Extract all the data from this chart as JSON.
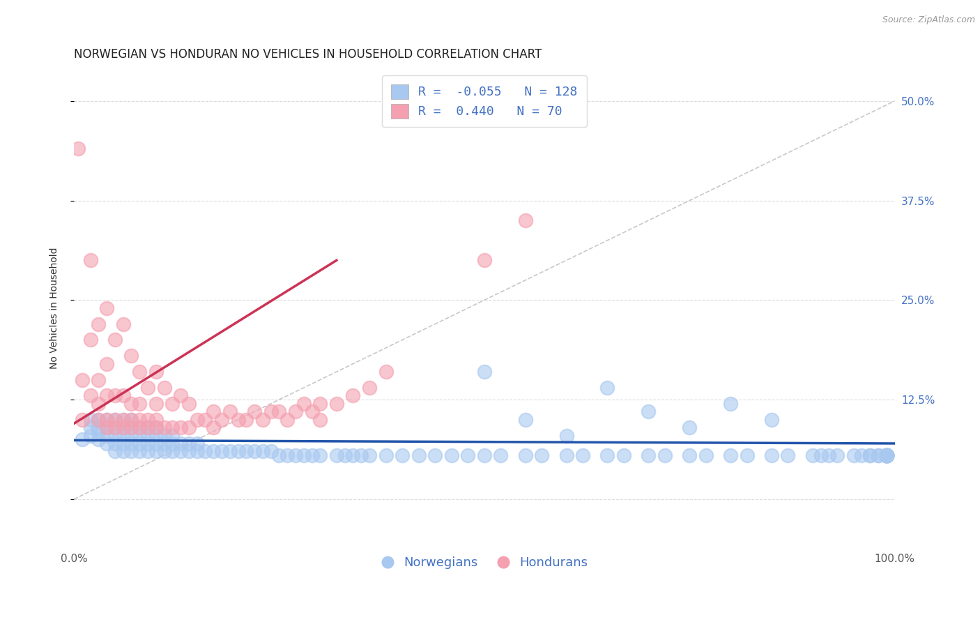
{
  "title": "NORWEGIAN VS HONDURAN NO VEHICLES IN HOUSEHOLD CORRELATION CHART",
  "source": "Source: ZipAtlas.com",
  "xlim": [
    0.0,
    1.0
  ],
  "ylim": [
    -0.06,
    0.54
  ],
  "ylabel_ticks_pct": [
    0.0,
    0.125,
    0.25,
    0.375,
    0.5
  ],
  "ylabel_labels": [
    "",
    "12.5%",
    "25.0%",
    "37.5%",
    "50.0%"
  ],
  "norwegian_R": -0.055,
  "norwegian_N": 128,
  "honduran_R": 0.44,
  "honduran_N": 70,
  "norwegian_color": "#A8C8F0",
  "honduran_color": "#F4A0B0",
  "norwegian_line_color": "#2255AA",
  "honduran_line_color": "#CC3355",
  "diag_line_color": "#BBBBBB",
  "background_color": "#FFFFFF",
  "grid_color": "#CCCCCC",
  "title_color": "#222222",
  "axis_label_color": "#333333",
  "tick_color": "#555555",
  "right_tick_color": "#4472C4",
  "legend_text_color": "#4472C4",
  "source_color": "#999999",
  "title_fontsize": 12,
  "axis_label_fontsize": 10,
  "tick_fontsize": 11,
  "legend_fontsize": 13,
  "source_fontsize": 9,
  "norwegian_x": [
    0.01,
    0.02,
    0.02,
    0.02,
    0.03,
    0.03,
    0.03,
    0.03,
    0.04,
    0.04,
    0.04,
    0.04,
    0.05,
    0.05,
    0.05,
    0.05,
    0.05,
    0.06,
    0.06,
    0.06,
    0.06,
    0.06,
    0.07,
    0.07,
    0.07,
    0.07,
    0.07,
    0.08,
    0.08,
    0.08,
    0.08,
    0.09,
    0.09,
    0.09,
    0.09,
    0.1,
    0.1,
    0.1,
    0.1,
    0.11,
    0.11,
    0.11,
    0.12,
    0.12,
    0.12,
    0.13,
    0.13,
    0.14,
    0.14,
    0.15,
    0.15,
    0.16,
    0.17,
    0.18,
    0.19,
    0.2,
    0.21,
    0.22,
    0.23,
    0.24,
    0.25,
    0.26,
    0.27,
    0.28,
    0.29,
    0.3,
    0.32,
    0.33,
    0.34,
    0.35,
    0.36,
    0.38,
    0.4,
    0.42,
    0.44,
    0.46,
    0.48,
    0.5,
    0.52,
    0.55,
    0.57,
    0.6,
    0.62,
    0.65,
    0.67,
    0.7,
    0.72,
    0.75,
    0.77,
    0.8,
    0.82,
    0.85,
    0.87,
    0.9,
    0.91,
    0.92,
    0.93,
    0.95,
    0.96,
    0.97,
    0.97,
    0.98,
    0.98,
    0.99,
    0.99,
    0.99,
    0.99,
    0.99,
    0.99,
    0.99,
    0.99,
    0.99,
    0.99,
    0.99,
    0.99,
    0.99,
    0.99,
    0.99,
    0.99,
    0.99,
    0.5,
    0.55,
    0.6,
    0.65,
    0.7,
    0.75,
    0.8,
    0.85
  ],
  "norwegian_y": [
    0.075,
    0.08,
    0.09,
    0.1,
    0.075,
    0.085,
    0.09,
    0.1,
    0.07,
    0.08,
    0.09,
    0.1,
    0.06,
    0.07,
    0.08,
    0.09,
    0.1,
    0.06,
    0.07,
    0.08,
    0.09,
    0.1,
    0.06,
    0.07,
    0.08,
    0.09,
    0.1,
    0.06,
    0.07,
    0.08,
    0.09,
    0.06,
    0.07,
    0.08,
    0.09,
    0.06,
    0.07,
    0.08,
    0.09,
    0.06,
    0.07,
    0.08,
    0.06,
    0.07,
    0.08,
    0.06,
    0.07,
    0.06,
    0.07,
    0.06,
    0.07,
    0.06,
    0.06,
    0.06,
    0.06,
    0.06,
    0.06,
    0.06,
    0.06,
    0.06,
    0.055,
    0.055,
    0.055,
    0.055,
    0.055,
    0.055,
    0.055,
    0.055,
    0.055,
    0.055,
    0.055,
    0.055,
    0.055,
    0.055,
    0.055,
    0.055,
    0.055,
    0.055,
    0.055,
    0.055,
    0.055,
    0.055,
    0.055,
    0.055,
    0.055,
    0.055,
    0.055,
    0.055,
    0.055,
    0.055,
    0.055,
    0.055,
    0.055,
    0.055,
    0.055,
    0.055,
    0.055,
    0.055,
    0.055,
    0.055,
    0.055,
    0.055,
    0.055,
    0.055,
    0.055,
    0.055,
    0.055,
    0.055,
    0.055,
    0.055,
    0.055,
    0.055,
    0.055,
    0.055,
    0.055,
    0.055,
    0.055,
    0.055,
    0.055,
    0.055,
    0.16,
    0.1,
    0.08,
    0.14,
    0.11,
    0.09,
    0.12,
    0.1
  ],
  "honduran_x": [
    0.005,
    0.01,
    0.01,
    0.02,
    0.02,
    0.02,
    0.03,
    0.03,
    0.03,
    0.03,
    0.04,
    0.04,
    0.04,
    0.04,
    0.04,
    0.05,
    0.05,
    0.05,
    0.05,
    0.06,
    0.06,
    0.06,
    0.06,
    0.07,
    0.07,
    0.07,
    0.07,
    0.08,
    0.08,
    0.08,
    0.08,
    0.09,
    0.09,
    0.09,
    0.1,
    0.1,
    0.1,
    0.1,
    0.11,
    0.11,
    0.12,
    0.12,
    0.13,
    0.13,
    0.14,
    0.14,
    0.15,
    0.16,
    0.17,
    0.17,
    0.18,
    0.19,
    0.2,
    0.21,
    0.22,
    0.23,
    0.24,
    0.25,
    0.26,
    0.27,
    0.28,
    0.29,
    0.3,
    0.3,
    0.32,
    0.34,
    0.36,
    0.38,
    0.5,
    0.55
  ],
  "honduran_y": [
    0.44,
    0.1,
    0.15,
    0.13,
    0.2,
    0.3,
    0.1,
    0.12,
    0.15,
    0.22,
    0.09,
    0.1,
    0.13,
    0.17,
    0.24,
    0.09,
    0.1,
    0.13,
    0.2,
    0.09,
    0.1,
    0.13,
    0.22,
    0.09,
    0.1,
    0.12,
    0.18,
    0.09,
    0.1,
    0.12,
    0.16,
    0.09,
    0.1,
    0.14,
    0.09,
    0.1,
    0.12,
    0.16,
    0.09,
    0.14,
    0.09,
    0.12,
    0.09,
    0.13,
    0.09,
    0.12,
    0.1,
    0.1,
    0.09,
    0.11,
    0.1,
    0.11,
    0.1,
    0.1,
    0.11,
    0.1,
    0.11,
    0.11,
    0.1,
    0.11,
    0.12,
    0.11,
    0.1,
    0.12,
    0.12,
    0.13,
    0.14,
    0.16,
    0.3,
    0.35
  ],
  "norwegian_trend_x": [
    0.0,
    1.0
  ],
  "norwegian_trend_y": [
    0.074,
    0.07
  ],
  "honduran_trend_x": [
    0.0,
    0.32
  ],
  "honduran_trend_y": [
    0.095,
    0.3
  ]
}
